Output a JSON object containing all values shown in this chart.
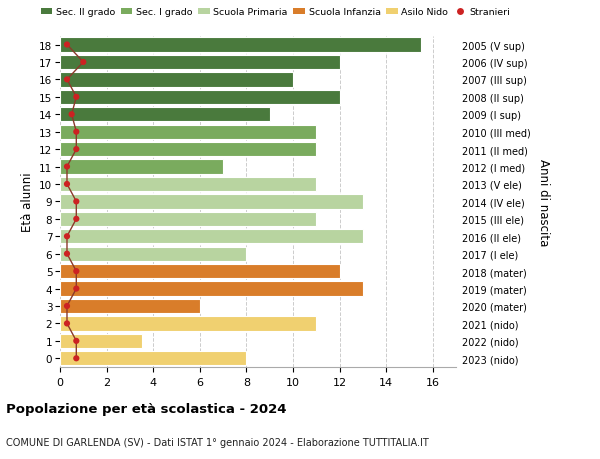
{
  "ages": [
    18,
    17,
    16,
    15,
    14,
    13,
    12,
    11,
    10,
    9,
    8,
    7,
    6,
    5,
    4,
    3,
    2,
    1,
    0
  ],
  "right_labels": [
    "2005 (V sup)",
    "2006 (IV sup)",
    "2007 (III sup)",
    "2008 (II sup)",
    "2009 (I sup)",
    "2010 (III med)",
    "2011 (II med)",
    "2012 (I med)",
    "2013 (V ele)",
    "2014 (IV ele)",
    "2015 (III ele)",
    "2016 (II ele)",
    "2017 (I ele)",
    "2018 (mater)",
    "2019 (mater)",
    "2020 (mater)",
    "2021 (nido)",
    "2022 (nido)",
    "2023 (nido)"
  ],
  "bar_values": [
    15.5,
    12,
    10,
    12,
    9,
    11,
    11,
    7,
    11,
    13,
    11,
    13,
    8,
    12,
    13,
    6,
    11,
    3.5,
    8
  ],
  "bar_colors": [
    "#4a7a3d",
    "#4a7a3d",
    "#4a7a3d",
    "#4a7a3d",
    "#4a7a3d",
    "#7aab5e",
    "#7aab5e",
    "#7aab5e",
    "#b8d4a0",
    "#b8d4a0",
    "#b8d4a0",
    "#b8d4a0",
    "#b8d4a0",
    "#d97d2a",
    "#d97d2a",
    "#d97d2a",
    "#f0d070",
    "#f0d070",
    "#f0d070"
  ],
  "stranieri_x": [
    0.3,
    1.0,
    0.3,
    0.7,
    0.5,
    0.7,
    0.7,
    0.3,
    0.3,
    0.7,
    0.7,
    0.3,
    0.3,
    0.7,
    0.7,
    0.3,
    0.3,
    0.7,
    0.7
  ],
  "legend_labels": [
    "Sec. II grado",
    "Sec. I grado",
    "Scuola Primaria",
    "Scuola Infanzia",
    "Asilo Nido",
    "Stranieri"
  ],
  "legend_colors": [
    "#4a7a3d",
    "#7aab5e",
    "#b8d4a0",
    "#d97d2a",
    "#f0d070",
    "#cc2222"
  ],
  "ylabel_left": "Età alunni",
  "ylabel_right": "Anni di nascita",
  "title": "Popolazione per età scolastica - 2024",
  "subtitle": "COMUNE DI GARLENDA (SV) - Dati ISTAT 1° gennaio 2024 - Elaborazione TUTTITALIA.IT",
  "xlim": [
    0,
    17
  ],
  "background_color": "#ffffff",
  "grid_color": "#cccccc",
  "stranieri_line_color": "#8b3a2a",
  "stranieri_dot_color": "#cc2222",
  "bar_height": 0.82
}
